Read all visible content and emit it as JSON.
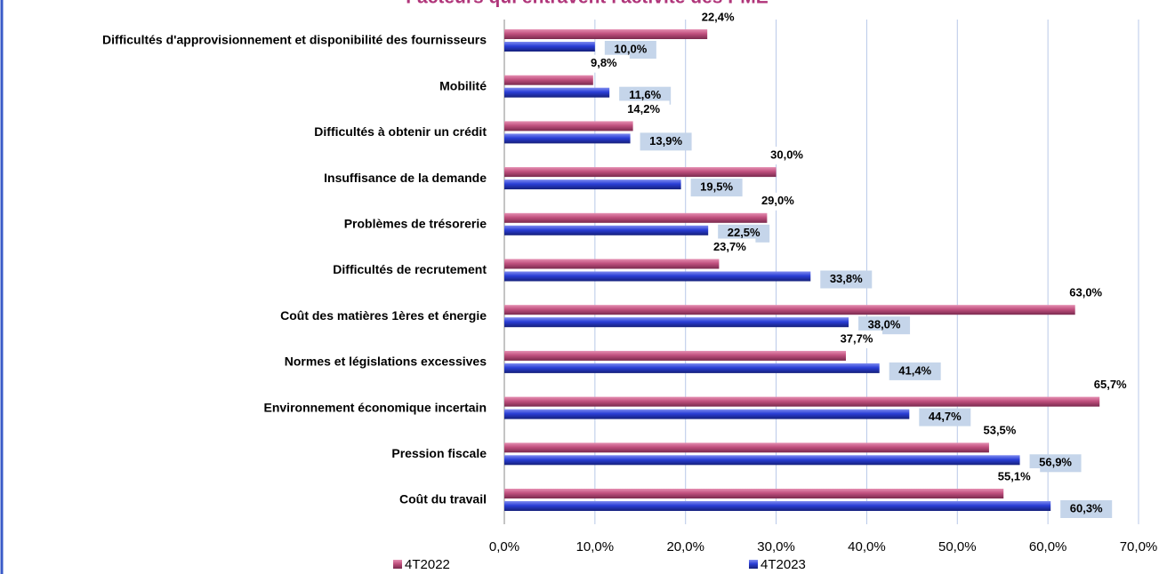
{
  "chart_data": {
    "type": "bar",
    "orientation": "horizontal",
    "title": "Facteurs qui entravent l'activité des PME",
    "categories": [
      "Difficultés d'approvisionnement et disponibilité des fournisseurs",
      "Mobilité",
      "Difficultés à obtenir un crédit",
      "Insuffisance de la demande",
      "Problèmes de trésorerie",
      "Difficultés de recrutement",
      "Coût des matières 1ères et énergie",
      "Normes et législations excessives",
      "Environnement économique incertain",
      "Pression fiscale",
      "Coût du travail"
    ],
    "series": [
      {
        "name": "4T2022",
        "color": "#c0507e",
        "values": [
          22.4,
          9.8,
          14.2,
          30.0,
          29.0,
          23.7,
          63.0,
          37.7,
          65.7,
          53.5,
          55.1
        ],
        "value_labels": [
          "22,4%",
          "9,8%",
          "14,2%",
          "30,0%",
          "29,0%",
          "23,7%",
          "63,0%",
          "37,7%",
          "65,7%",
          "53,5%",
          "55,1%"
        ]
      },
      {
        "name": "4T2023",
        "color": "#2a3ed6",
        "values": [
          10.0,
          11.6,
          13.9,
          19.5,
          22.5,
          33.8,
          38.0,
          41.4,
          44.7,
          56.9,
          60.3
        ],
        "value_labels": [
          "10,0%",
          "11,6%",
          "13,9%",
          "19,5%",
          "22,5%",
          "33,8%",
          "38,0%",
          "41,4%",
          "44,7%",
          "56,9%",
          "60,3%"
        ]
      }
    ],
    "xlim": [
      0,
      70
    ],
    "xticks": [
      {
        "value": 0,
        "label": "0,0%"
      },
      {
        "value": 10,
        "label": "10,0%"
      },
      {
        "value": 20,
        "label": "20,0%"
      },
      {
        "value": 30,
        "label": "30,0%"
      },
      {
        "value": 40,
        "label": "40,0%"
      },
      {
        "value": 50,
        "label": "50,0%"
      },
      {
        "value": 60,
        "label": "60,0%"
      },
      {
        "value": 70,
        "label": "70,0%"
      }
    ],
    "grid": true,
    "legend": "bottom"
  }
}
